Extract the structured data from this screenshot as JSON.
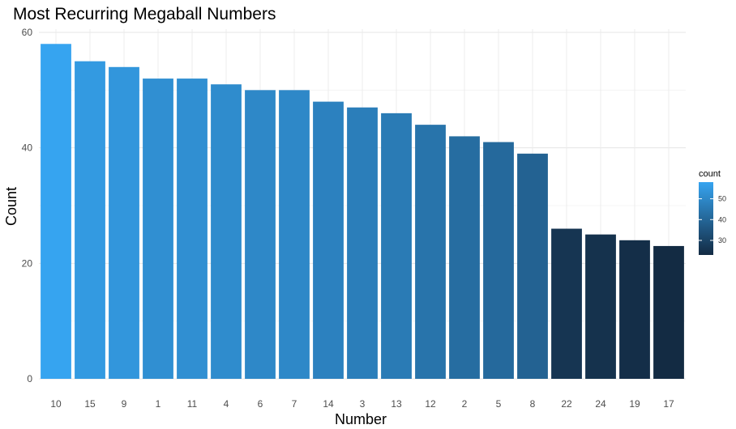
{
  "chart_data": {
    "type": "bar",
    "title": "Most Recurring Megaball Numbers",
    "xlabel": "Number",
    "ylabel": "Count",
    "categories": [
      "10",
      "15",
      "9",
      "1",
      "11",
      "4",
      "6",
      "7",
      "14",
      "3",
      "13",
      "12",
      "2",
      "5",
      "8",
      "22",
      "24",
      "19",
      "17"
    ],
    "values": [
      58,
      55,
      54,
      52,
      52,
      51,
      50,
      50,
      48,
      47,
      46,
      44,
      42,
      41,
      39,
      26,
      25,
      24,
      23
    ],
    "ylim": [
      0,
      60
    ],
    "yticks": [
      0,
      20,
      40,
      60
    ],
    "grid": true,
    "fill_scale": {
      "low": "#132B43",
      "high": "#36A4F0",
      "min": 23,
      "max": 58
    },
    "legend": {
      "title": "count",
      "placement": "right",
      "ticks": [
        30,
        40,
        50
      ]
    }
  }
}
